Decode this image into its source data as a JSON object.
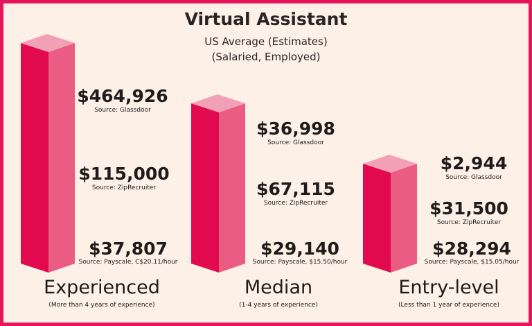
{
  "chart_data": {
    "type": "bar",
    "title": "Virtual Assistant",
    "subtitle_1": "US Average (Estimates)",
    "subtitle_2": "(Salaried, Employed)",
    "colors": {
      "front": "#e20a4e",
      "side": "#ea5c82",
      "top": "#f2a0b6",
      "border": "#e8145a",
      "background": "#fdf0e7"
    },
    "categories": [
      {
        "name": "Experienced",
        "detail": "(More than 4 years of experience)",
        "estimates": [
          {
            "amount": "$464,926",
            "source": "Source: Glassdoor"
          },
          {
            "amount": "$115,000",
            "source": "Source: ZipRecruiter"
          },
          {
            "amount": "$37,807",
            "source": "Source: Payscale, C$20.11/hour"
          }
        ]
      },
      {
        "name": "Median",
        "detail": "(1-4 years of experience)",
        "estimates": [
          {
            "amount": "$36,998",
            "source": "Source: Glassdoor"
          },
          {
            "amount": "$67,115",
            "source": "Source: ZipRecruiter"
          },
          {
            "amount": "$29,140",
            "source": "Source: Payscale, $15.50/hour"
          }
        ]
      },
      {
        "name": "Entry-level",
        "detail": "(Less than 1 year of experience)",
        "estimates": [
          {
            "amount": "$2,944",
            "source": "Source: Glassdoor"
          },
          {
            "amount": "$31,500",
            "source": "Source: ZipRecruiter"
          },
          {
            "amount": "$28,294",
            "source": "Source: Payscale, $15.05/hour"
          }
        ]
      }
    ],
    "bar_levels": [
      3,
      2,
      1
    ]
  }
}
